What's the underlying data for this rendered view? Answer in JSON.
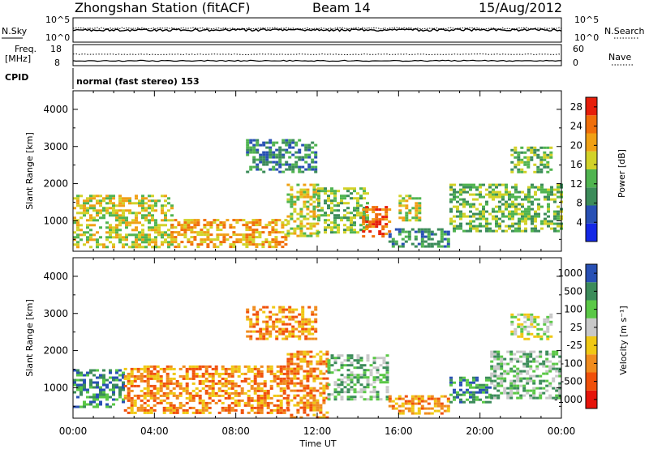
{
  "header": {
    "title": "Zhongshan Station (fitACF)",
    "beam": "Beam 14",
    "date": "15/Aug/2012"
  },
  "status_panels": {
    "nsky_label": "N.Sky",
    "nsearch_label": "N.Search",
    "nsky_ticks": [
      "10^5",
      "10^0"
    ],
    "nsearch_ticks": [
      "10^5",
      "10^0"
    ],
    "freq_label": "Freq.",
    "freq_unit": "[MHz]",
    "freq_ticks": [
      "18",
      "8"
    ],
    "nave_label": "Nave",
    "nave_ticks": [
      "60",
      "0"
    ],
    "cpid_label": "CPID",
    "cpid_text": "normal (fast stereo) 153"
  },
  "colors": {
    "power_scale": [
      "#1428e6",
      "#2850b4",
      "#3c8c5a",
      "#50b450",
      "#d2d228",
      "#f0a014",
      "#f06e0a",
      "#e61e0a"
    ],
    "velocity_scale": [
      "#e6140a",
      "#f0500a",
      "#f08c1e",
      "#f0c814",
      "#c8c8c8",
      "#5ac846",
      "#3c8c5a",
      "#2850b4"
    ]
  },
  "chart_data": [
    {
      "type": "heatmap",
      "name": "power",
      "xlabel": "Time UT",
      "ylabel": "Slant Range [km]",
      "x_ticks": [
        "00:00",
        "04:00",
        "08:00",
        "12:00",
        "16:00",
        "20:00",
        "00:00"
      ],
      "xlim": [
        0,
        24
      ],
      "y_ticks": [
        1000,
        2000,
        3000,
        4000
      ],
      "ylim": [
        180,
        4500
      ],
      "colorbar_label": "Power [dB]",
      "colorbar_ticks": [
        4,
        8,
        12,
        16,
        20,
        24,
        28
      ],
      "colorbar_range": [
        0,
        30
      ],
      "echo_regions": [
        {
          "t": [
            0.0,
            4.8
          ],
          "r": [
            300,
            1700
          ],
          "level": 15
        },
        {
          "t": [
            4.8,
            10.5
          ],
          "r": [
            300,
            1050
          ],
          "level": 22
        },
        {
          "t": [
            10.5,
            12.0
          ],
          "r": [
            600,
            2000
          ],
          "level": 18
        },
        {
          "t": [
            12.0,
            14.5
          ],
          "r": [
            700,
            1900
          ],
          "level": 13
        },
        {
          "t": [
            14.2,
            15.6
          ],
          "r": [
            600,
            1400
          ],
          "level": 25
        },
        {
          "t": [
            15.5,
            18.5
          ],
          "r": [
            300,
            800
          ],
          "level": 10
        },
        {
          "t": [
            16.0,
            17.0
          ],
          "r": [
            1000,
            1700
          ],
          "level": 15
        },
        {
          "t": [
            18.5,
            24.0
          ],
          "r": [
            700,
            2000
          ],
          "level": 12
        },
        {
          "t": [
            8.5,
            12.0
          ],
          "r": [
            2300,
            3200
          ],
          "level": 8
        },
        {
          "t": [
            21.5,
            23.5
          ],
          "r": [
            2300,
            3000
          ],
          "level": 12
        }
      ]
    },
    {
      "type": "heatmap",
      "name": "velocity",
      "xlabel": "Time UT",
      "ylabel": "Slant Range [km]",
      "x_ticks": [
        "00:00",
        "04:00",
        "08:00",
        "12:00",
        "16:00",
        "20:00",
        "00:00"
      ],
      "xlim": [
        0,
        24
      ],
      "y_ticks": [
        1000,
        2000,
        3000,
        4000
      ],
      "ylim": [
        180,
        4500
      ],
      "colorbar_label": "Velocity [m s⁻¹]",
      "colorbar_ticks": [
        "1000",
        "500",
        "100",
        "25",
        "-25",
        "-100",
        "-500",
        "-1000"
      ],
      "echo_regions": [
        {
          "t": [
            0.0,
            2.5
          ],
          "r": [
            500,
            1500
          ],
          "level": 500
        },
        {
          "t": [
            2.5,
            10.5
          ],
          "r": [
            300,
            1600
          ],
          "level": -100
        },
        {
          "t": [
            10.5,
            12.5
          ],
          "r": [
            200,
            2000
          ],
          "level": -100
        },
        {
          "t": [
            12.5,
            15.5
          ],
          "r": [
            700,
            1900
          ],
          "level": 100
        },
        {
          "t": [
            15.5,
            18.5
          ],
          "r": [
            300,
            800
          ],
          "level": -100
        },
        {
          "t": [
            18.5,
            20.5
          ],
          "r": [
            600,
            1300
          ],
          "level": 500
        },
        {
          "t": [
            20.5,
            24.0
          ],
          "r": [
            700,
            2000
          ],
          "level": 100
        },
        {
          "t": [
            21.5,
            23.5
          ],
          "r": [
            2300,
            3000
          ],
          "level": 25
        },
        {
          "t": [
            8.5,
            12.0
          ],
          "r": [
            2300,
            3200
          ],
          "level": -100
        }
      ]
    }
  ]
}
